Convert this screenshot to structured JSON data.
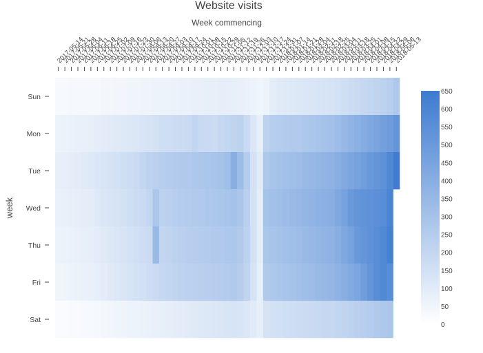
{
  "chart_data": {
    "type": "heatmap",
    "title": "Website visits",
    "subtitle": "Week commencing",
    "ylabel": "week",
    "x": [
      "2017-05-14",
      "2017-05-21",
      "2017-05-28",
      "2017-06-04",
      "2017-06-11",
      "2017-06-18",
      "2017-06-25",
      "2017-07-02",
      "2017-07-09",
      "2017-07-16",
      "2017-07-23",
      "2017-07-30",
      "2017-08-06",
      "2017-08-13",
      "2017-08-20",
      "2017-08-27",
      "2017-09-03",
      "2017-09-10",
      "2017-09-17",
      "2017-09-24",
      "2017-10-01",
      "2017-10-08",
      "2017-10-15",
      "2017-10-22",
      "2017-10-29",
      "2017-11-05",
      "2017-11-12",
      "2017-11-19",
      "2017-11-26",
      "2017-12-03",
      "2017-12-10",
      "2017-12-17",
      "2017-12-24",
      "2017-12-31",
      "2018-01-07",
      "2018-01-14",
      "2018-01-21",
      "2018-01-28",
      "2018-02-04",
      "2018-02-11",
      "2018-02-18",
      "2018-02-25",
      "2018-03-04",
      "2018-03-11",
      "2018-03-18",
      "2018-03-25",
      "2018-04-01",
      "2018-04-08",
      "2018-04-15",
      "2018-04-22",
      "2018-04-29",
      "2018-05-06",
      "2018-05-13"
    ],
    "y": [
      "Sun",
      "Mon",
      "Tue",
      "Wed",
      "Thu",
      "Fri",
      "Sat"
    ],
    "z": [
      [
        30,
        30,
        35,
        35,
        35,
        35,
        35,
        40,
        40,
        45,
        45,
        50,
        50,
        55,
        55,
        60,
        60,
        60,
        65,
        70,
        70,
        75,
        75,
        80,
        80,
        85,
        85,
        80,
        75,
        70,
        60,
        50,
        60,
        90,
        100,
        105,
        110,
        115,
        120,
        125,
        130,
        135,
        140,
        150,
        160,
        170,
        180,
        190,
        200,
        210,
        220,
        240,
        270
      ],
      [
        60,
        65,
        70,
        75,
        75,
        80,
        90,
        95,
        100,
        105,
        110,
        115,
        120,
        130,
        140,
        150,
        160,
        165,
        170,
        175,
        180,
        200,
        185,
        180,
        175,
        190,
        200,
        210,
        220,
        180,
        120,
        80,
        220,
        240,
        250,
        255,
        260,
        265,
        270,
        280,
        290,
        300,
        310,
        330,
        350,
        370,
        390,
        410,
        430,
        450,
        470,
        490,
        520
      ],
      [
        80,
        85,
        90,
        95,
        100,
        110,
        120,
        130,
        140,
        150,
        160,
        170,
        180,
        200,
        220,
        230,
        240,
        250,
        255,
        260,
        265,
        270,
        275,
        280,
        290,
        300,
        320,
        400,
        330,
        250,
        150,
        100,
        270,
        290,
        300,
        310,
        320,
        330,
        340,
        350,
        360,
        370,
        380,
        400,
        420,
        440,
        460,
        480,
        500,
        520,
        540,
        580,
        640
      ],
      [
        70,
        75,
        80,
        85,
        90,
        95,
        110,
        120,
        130,
        140,
        150,
        160,
        170,
        180,
        200,
        280,
        220,
        230,
        240,
        250,
        255,
        260,
        265,
        270,
        275,
        280,
        290,
        300,
        280,
        230,
        150,
        90,
        300,
        310,
        320,
        330,
        340,
        350,
        360,
        370,
        380,
        390,
        400,
        430,
        460,
        500,
        520,
        530,
        540,
        550,
        560,
        600,
        null
      ],
      [
        60,
        65,
        70,
        75,
        80,
        85,
        95,
        105,
        115,
        125,
        135,
        145,
        155,
        165,
        175,
        340,
        200,
        210,
        220,
        230,
        240,
        245,
        250,
        255,
        260,
        265,
        270,
        275,
        260,
        220,
        150,
        90,
        280,
        290,
        300,
        310,
        320,
        330,
        340,
        350,
        360,
        370,
        380,
        400,
        430,
        460,
        500,
        520,
        540,
        560,
        580,
        620,
        null
      ],
      [
        50,
        55,
        60,
        65,
        70,
        75,
        85,
        95,
        105,
        115,
        125,
        135,
        145,
        155,
        165,
        180,
        190,
        200,
        210,
        220,
        225,
        230,
        235,
        240,
        245,
        250,
        255,
        260,
        245,
        210,
        140,
        80,
        260,
        270,
        280,
        290,
        300,
        310,
        320,
        330,
        340,
        350,
        360,
        380,
        400,
        420,
        440,
        480,
        520,
        560,
        580,
        560,
        null
      ],
      [
        20,
        20,
        25,
        25,
        30,
        30,
        35,
        40,
        45,
        50,
        55,
        60,
        60,
        65,
        70,
        75,
        80,
        85,
        90,
        95,
        100,
        105,
        110,
        115,
        120,
        125,
        130,
        135,
        130,
        120,
        100,
        80,
        140,
        150,
        155,
        160,
        165,
        170,
        175,
        180,
        185,
        190,
        195,
        200,
        210,
        220,
        230,
        240,
        250,
        260,
        270,
        280,
        null
      ]
    ],
    "zmin": 0,
    "zmax": 650,
    "colorbar_ticks": [
      0,
      50,
      100,
      150,
      200,
      250,
      300,
      350,
      400,
      450,
      500,
      550,
      600,
      650
    ],
    "colorscale": [
      "#ffffff",
      "#3d7bd0"
    ],
    "legend_position": "right"
  }
}
